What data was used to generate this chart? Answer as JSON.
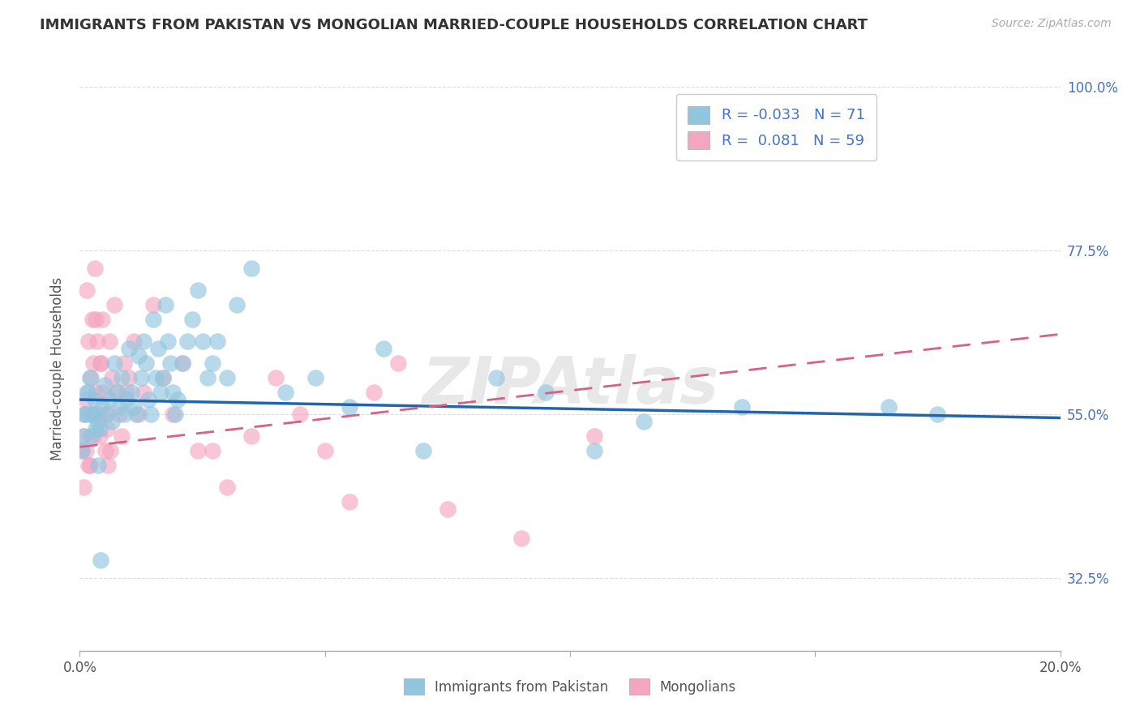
{
  "title": "IMMIGRANTS FROM PAKISTAN VS MONGOLIAN MARRIED-COUPLE HOUSEHOLDS CORRELATION CHART",
  "source": "Source: ZipAtlas.com",
  "ylabel": "Married-couple Households",
  "legend_r": [
    -0.033,
    0.081
  ],
  "legend_n": [
    71,
    59
  ],
  "x_min": 0.0,
  "x_max": 20.0,
  "y_min": 22.5,
  "y_max": 100.0,
  "y_ticks": [
    32.5,
    55.0,
    77.5,
    100.0
  ],
  "y_tick_labels": [
    "32.5%",
    "55.0%",
    "77.5%",
    "100.0%"
  ],
  "color_blue": "#92c5de",
  "color_pink": "#f4a6c0",
  "trend_blue": "#2166ac",
  "trend_pink": "#d6608a",
  "blue_trend_y0": 57.0,
  "blue_trend_y1": 54.5,
  "pink_trend_y0": 50.5,
  "pink_trend_y1": 66.0,
  "blue_scatter_x": [
    0.1,
    0.15,
    0.2,
    0.25,
    0.3,
    0.35,
    0.4,
    0.45,
    0.5,
    0.55,
    0.6,
    0.65,
    0.7,
    0.75,
    0.8,
    0.85,
    0.9,
    0.95,
    1.0,
    1.05,
    1.1,
    1.15,
    1.2,
    1.25,
    1.3,
    1.35,
    1.4,
    1.45,
    1.5,
    1.55,
    1.6,
    1.65,
    1.7,
    1.75,
    1.8,
    1.85,
    1.9,
    1.95,
    2.0,
    2.1,
    2.2,
    2.3,
    2.4,
    2.5,
    2.6,
    2.7,
    2.8,
    3.0,
    3.2,
    3.5,
    4.2,
    4.8,
    5.5,
    6.2,
    7.0,
    8.5,
    9.5,
    10.5,
    11.5,
    13.5,
    16.5,
    17.5,
    0.05,
    0.08,
    0.12,
    0.18,
    0.22,
    0.28,
    0.32,
    0.38,
    0.42
  ],
  "blue_scatter_y": [
    55.0,
    58.0,
    60.0,
    55.0,
    57.0,
    54.0,
    53.0,
    56.0,
    59.0,
    55.0,
    57.0,
    54.0,
    62.0,
    58.0,
    56.0,
    60.0,
    55.0,
    57.0,
    64.0,
    58.0,
    56.0,
    55.0,
    63.0,
    60.0,
    65.0,
    62.0,
    57.0,
    55.0,
    68.0,
    60.0,
    64.0,
    58.0,
    60.0,
    70.0,
    65.0,
    62.0,
    58.0,
    55.0,
    57.0,
    62.0,
    65.0,
    68.0,
    72.0,
    65.0,
    60.0,
    62.0,
    65.0,
    60.0,
    70.0,
    75.0,
    58.0,
    60.0,
    56.0,
    64.0,
    50.0,
    60.0,
    58.0,
    50.0,
    54.0,
    56.0,
    56.0,
    55.0,
    50.0,
    52.0,
    55.0,
    58.0,
    52.0,
    55.0,
    53.0,
    48.0,
    35.0
  ],
  "pink_scatter_x": [
    0.05,
    0.08,
    0.1,
    0.12,
    0.15,
    0.18,
    0.2,
    0.22,
    0.25,
    0.28,
    0.3,
    0.32,
    0.35,
    0.38,
    0.4,
    0.42,
    0.45,
    0.48,
    0.5,
    0.52,
    0.55,
    0.58,
    0.6,
    0.65,
    0.7,
    0.75,
    0.8,
    0.85,
    0.9,
    0.95,
    1.0,
    1.1,
    1.2,
    1.3,
    1.5,
    1.7,
    1.9,
    2.1,
    2.4,
    2.7,
    3.0,
    3.5,
    4.0,
    4.5,
    5.0,
    5.5,
    6.0,
    6.5,
    7.5,
    9.0,
    10.5,
    0.07,
    0.13,
    0.17,
    0.23,
    0.27,
    0.33,
    0.43,
    0.62
  ],
  "pink_scatter_y": [
    50.0,
    52.0,
    55.0,
    57.0,
    72.0,
    65.0,
    48.0,
    60.0,
    68.0,
    62.0,
    75.0,
    58.0,
    65.0,
    55.0,
    52.0,
    62.0,
    68.0,
    58.0,
    55.0,
    50.0,
    53.0,
    48.0,
    65.0,
    60.0,
    70.0,
    58.0,
    55.0,
    52.0,
    62.0,
    58.0,
    60.0,
    65.0,
    55.0,
    58.0,
    70.0,
    60.0,
    55.0,
    62.0,
    50.0,
    50.0,
    45.0,
    52.0,
    60.0,
    55.0,
    50.0,
    43.0,
    58.0,
    62.0,
    42.0,
    38.0,
    52.0,
    45.0,
    50.0,
    48.0,
    55.0,
    52.0,
    68.0,
    62.0,
    50.0
  ],
  "watermark": "ZIPAtlas",
  "background_color": "#ffffff",
  "grid_color": "#dddddd"
}
